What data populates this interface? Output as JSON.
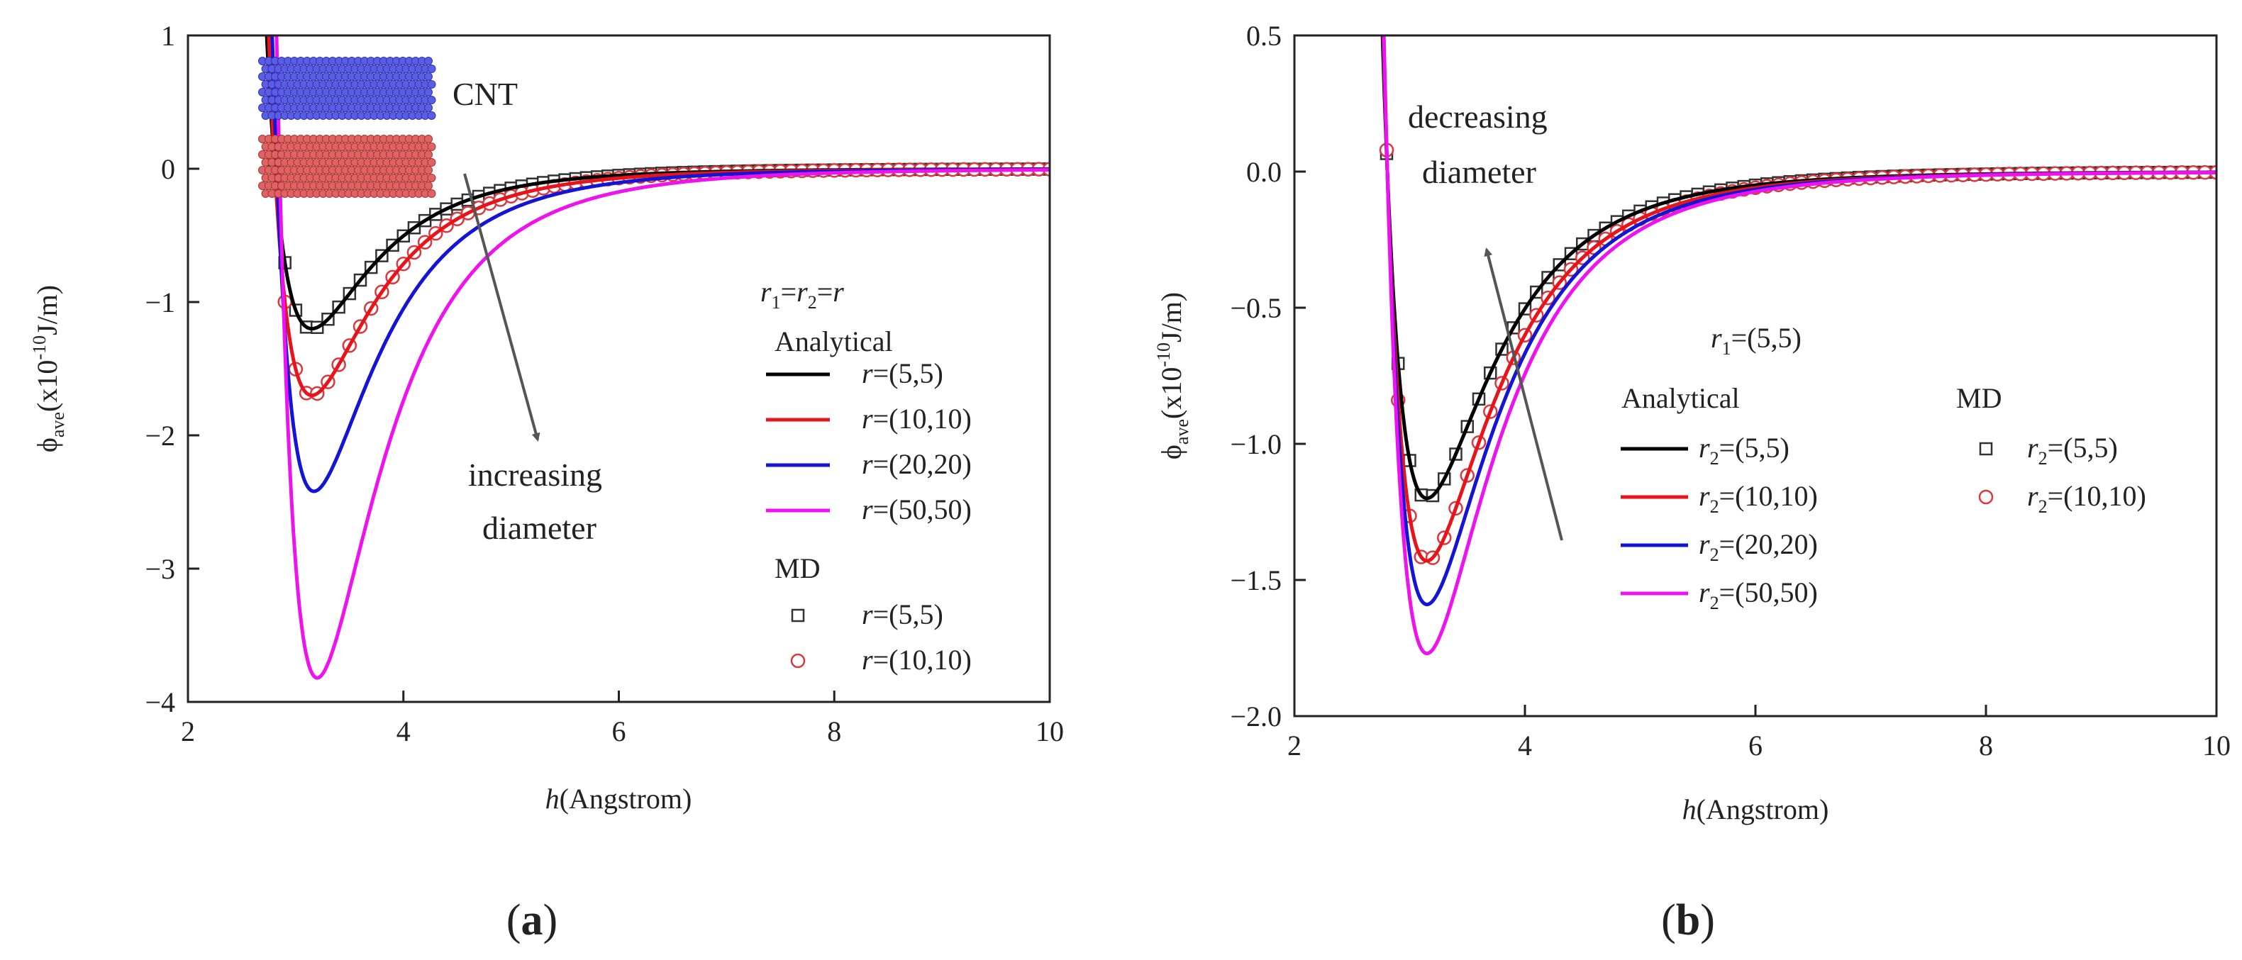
{
  "chart_data": [
    {
      "panel": "(a)",
      "type": "line",
      "ylabel_main": "ϕ",
      "ylabel_sub": "ave",
      "ylabel_pre": "(x10",
      "ylabel_exp": "-10",
      "ylabel_unit": "J/m)",
      "xlabel_var": "h",
      "xlabel_unit": "(Angstrom)",
      "xlim": [
        2,
        10
      ],
      "ylim": [
        -4,
        1
      ],
      "xticks": [
        "2",
        "4",
        "6",
        "8",
        "10"
      ],
      "yticks": [
        "−4",
        "−3",
        "−2",
        "−1",
        "0",
        "1"
      ],
      "inset_label": "CNT",
      "annotation": [
        "increasing",
        "diameter"
      ],
      "legend": {
        "condition": {
          "a": "r",
          "a_sub": "1",
          "eq1": "=",
          "b": "r",
          "b_sub": "2",
          "eq2": "=",
          "c": "r"
        },
        "analytical_title": "Analytical",
        "md_title": "MD",
        "analytical": [
          {
            "var": "r",
            "sub": "",
            "value": "=(5,5)",
            "color": "#000000"
          },
          {
            "var": "r",
            "sub": "",
            "value": "=(10,10)",
            "color": "#e8141b"
          },
          {
            "var": "r",
            "sub": "",
            "value": "=(20,20)",
            "color": "#1414d4"
          },
          {
            "var": "r",
            "sub": "",
            "value": "=(50,50)",
            "color": "#ee13ee"
          }
        ],
        "md": [
          {
            "var": "r",
            "sub": "",
            "value": "=(5,5)",
            "marker": "square",
            "color": "#333333"
          },
          {
            "var": "r",
            "sub": "",
            "value": "=(10,10)",
            "marker": "circle",
            "color": "#d9383d"
          }
        ]
      },
      "series": [
        {
          "name": "r=(5,5)",
          "kind": "line",
          "color": "#000000",
          "eps": 1.2,
          "r0": 3.15,
          "xstart": 2.62
        },
        {
          "name": "r=(10,10)",
          "kind": "line",
          "color": "#e8141b",
          "eps": 1.7,
          "r0": 3.15,
          "xstart": 2.6
        },
        {
          "name": "r=(20,20)",
          "kind": "line",
          "color": "#1414d4",
          "eps": 2.42,
          "r0": 3.17,
          "xstart": 2.65
        },
        {
          "name": "r=(50,50)",
          "kind": "line",
          "color": "#ee13ee",
          "eps": 3.82,
          "r0": 3.2,
          "xstart": 2.68
        },
        {
          "name": "MD r=(5,5)",
          "kind": "markers",
          "marker": "square",
          "color": "#333333",
          "eps": 1.2,
          "r0": 3.15
        },
        {
          "name": "MD r=(10,10)",
          "kind": "markers",
          "marker": "circle",
          "color": "#d9383d",
          "eps": 1.7,
          "r0": 3.15
        }
      ]
    },
    {
      "panel": "(b)",
      "type": "line",
      "ylabel_main": "ϕ",
      "ylabel_sub": "ave",
      "ylabel_pre": "(x10",
      "ylabel_exp": "-10",
      "ylabel_unit": "J/m)",
      "xlabel_var": "h",
      "xlabel_unit": "(Angstrom)",
      "xlim": [
        2,
        10
      ],
      "ylim": [
        -2,
        0.5
      ],
      "xticks": [
        "2",
        "4",
        "6",
        "8",
        "10"
      ],
      "yticks": [
        "−2.0",
        "−1.5",
        "−1.0",
        "−0.5",
        "0.0",
        "0.5"
      ],
      "annotation": [
        "decreasing",
        "diameter"
      ],
      "legend": {
        "condition": {
          "a": "r",
          "a_sub": "1",
          "value": "=(5,5)"
        },
        "analytical_title": "Analytical",
        "md_title": "MD",
        "analytical": [
          {
            "var": "r",
            "sub": "2",
            "value": "=(5,5)",
            "color": "#000000"
          },
          {
            "var": "r",
            "sub": "2",
            "value": "=(10,10)",
            "color": "#e8141b"
          },
          {
            "var": "r",
            "sub": "2",
            "value": "=(20,20)",
            "color": "#1414d4"
          },
          {
            "var": "r",
            "sub": "2",
            "value": "=(50,50)",
            "color": "#ee13ee"
          }
        ],
        "md": [
          {
            "var": "r",
            "sub": "2",
            "value": "=(5,5)",
            "marker": "square",
            "color": "#333333"
          },
          {
            "var": "r",
            "sub": "2",
            "value": "=(10,10)",
            "marker": "circle",
            "color": "#d9383d"
          }
        ]
      },
      "series": [
        {
          "name": "r2=(5,5)",
          "kind": "line",
          "color": "#000000",
          "eps": 1.2,
          "r0": 3.15,
          "xstart": 2.62
        },
        {
          "name": "r2=(10,10)",
          "kind": "line",
          "color": "#e8141b",
          "eps": 1.43,
          "r0": 3.15,
          "xstart": 2.62
        },
        {
          "name": "r2=(20,20)",
          "kind": "line",
          "color": "#1414d4",
          "eps": 1.59,
          "r0": 3.15,
          "xstart": 2.62
        },
        {
          "name": "r2=(50,50)",
          "kind": "line",
          "color": "#ee13ee",
          "eps": 1.77,
          "r0": 3.15,
          "xstart": 2.62
        },
        {
          "name": "MD r2=(5,5)",
          "kind": "markers",
          "marker": "square",
          "color": "#333333",
          "eps": 1.2,
          "r0": 3.15
        },
        {
          "name": "MD r2=(10,10)",
          "kind": "markers",
          "marker": "circle",
          "color": "#d9383d",
          "eps": 1.43,
          "r0": 3.15
        }
      ]
    }
  ]
}
